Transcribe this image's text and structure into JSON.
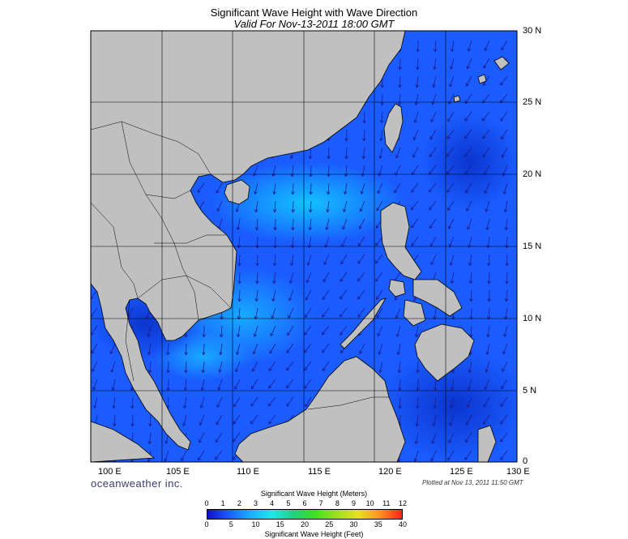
{
  "header": {
    "title": "Significant Wave Height with Wave Direction",
    "subtitle": "Valid For Nov-13-2011 18:00 GMT"
  },
  "map": {
    "lon_labels": [
      "100 E",
      "105 E",
      "110 E",
      "115 E",
      "120 E",
      "125 E",
      "130 E"
    ],
    "lat_labels": [
      "30 N",
      "25 N",
      "20 N",
      "15 N",
      "10 N",
      "5 N",
      "0"
    ],
    "lon_range": [
      100,
      130
    ],
    "lat_range": [
      0,
      30
    ],
    "grid": true,
    "colors": {
      "land": "#c0c0c0",
      "coast": "#000000",
      "sea": "#1a5cff",
      "arrow": "#1c1c8c"
    }
  },
  "footer": {
    "brand": "oceanweather inc.",
    "plotted": "Plotted at Nov 13, 2011 11:50 GMT"
  },
  "colorbar": {
    "title_meters": "Significant Wave Height (Meters)",
    "title_feet": "Significant Wave Height (Feet)",
    "meters_ticks": [
      "0",
      "1",
      "2",
      "3",
      "4",
      "5",
      "6",
      "7",
      "8",
      "9",
      "10",
      "11",
      "12"
    ],
    "feet_ticks": [
      "0",
      "5",
      "10",
      "15",
      "20",
      "25",
      "30",
      "35",
      "40"
    ],
    "gradient": [
      "#1010c8",
      "#1c5cff",
      "#1ab0ff",
      "#1ee8e8",
      "#20d080",
      "#40e020",
      "#a0e020",
      "#e8e020",
      "#ff9020",
      "#ff2020"
    ]
  }
}
